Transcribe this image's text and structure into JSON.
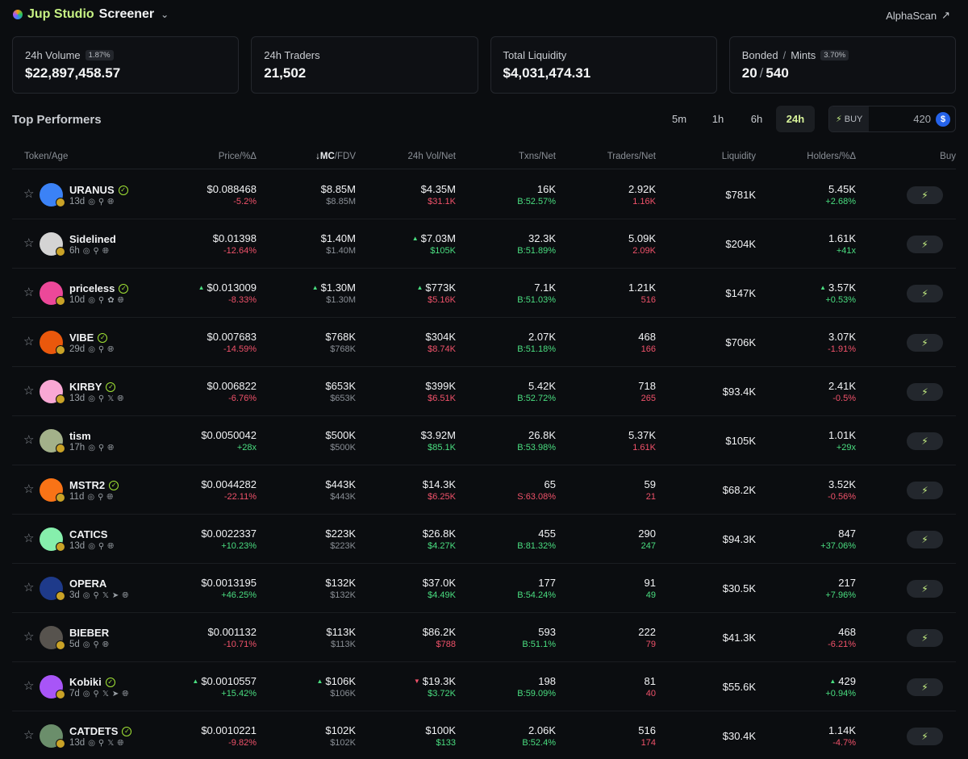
{
  "header": {
    "brand_accent": "Jup Studio",
    "brand_rest": "Screener",
    "alphascan": "AlphaScan"
  },
  "stats": [
    {
      "label": "24h Volume",
      "badge": "1.87%",
      "value": "$22,897,458.57"
    },
    {
      "label": "24h Traders",
      "badge": "",
      "value": "21,502"
    },
    {
      "label": "Total Liquidity",
      "badge": "",
      "value": "$4,031,474.31"
    },
    {
      "label_a": "Bonded",
      "label_b": "Mints",
      "badge": "3.70%",
      "value_a": "20",
      "value_b": "540"
    }
  ],
  "section_title": "Top Performers",
  "timeframes": [
    "5m",
    "1h",
    "6h",
    "24h"
  ],
  "active_timeframe": "24h",
  "quickbuy": {
    "label": "BUY",
    "amount": "420"
  },
  "columns": {
    "token": "Token/Age",
    "price": "Price/%Δ",
    "mc": "MC",
    "fdv": "/FDV",
    "vol": "24h Vol/Net",
    "txns": "Txns/Net",
    "traders": "Traders/Net",
    "liquidity": "Liquidity",
    "holders": "Holders/%Δ",
    "buy": "Buy"
  },
  "colors": {
    "accent": "#c7f284",
    "up": "#4ade80",
    "down": "#f0526a",
    "bg": "#0b0d10"
  },
  "rows": [
    {
      "name": "URANUS",
      "verified": true,
      "age": "13d",
      "socials": [
        "web",
        "search",
        "globe"
      ],
      "avatar": "#3b82f6",
      "price": "$0.088468",
      "price_chg": "-5.2%",
      "price_dir": "down",
      "price_tri": "",
      "mc": "$8.85M",
      "fdv": "$8.85M",
      "mc_tri": "",
      "vol": "$4.35M",
      "vol_net": "$31.1K",
      "vol_dir": "down",
      "vol_tri": "",
      "txns": "16K",
      "txns_net": "B:52.57%",
      "txns_dir": "up",
      "traders": "2.92K",
      "traders_net": "1.16K",
      "traders_dir": "down",
      "liquidity": "$781K",
      "holders": "5.45K",
      "holders_chg": "+2.68%",
      "holders_dir": "up",
      "holders_tri": ""
    },
    {
      "name": "Sidelined",
      "verified": false,
      "age": "6h",
      "socials": [
        "web",
        "search",
        "globe"
      ],
      "avatar": "#d4d4d4",
      "price": "$0.01398",
      "price_chg": "-12.64%",
      "price_dir": "down",
      "price_tri": "",
      "mc": "$1.40M",
      "fdv": "$1.40M",
      "mc_tri": "",
      "vol": "$7.03M",
      "vol_net": "$105K",
      "vol_dir": "up",
      "vol_tri": "up",
      "txns": "32.3K",
      "txns_net": "B:51.89%",
      "txns_dir": "up",
      "traders": "5.09K",
      "traders_net": "2.09K",
      "traders_dir": "down",
      "liquidity": "$204K",
      "holders": "1.61K",
      "holders_chg": "+41x",
      "holders_dir": "up",
      "holders_tri": ""
    },
    {
      "name": "priceless",
      "verified": true,
      "age": "10d",
      "socials": [
        "web",
        "search",
        "leaf",
        "globe"
      ],
      "avatar": "#ec4899",
      "price": "$0.013009",
      "price_chg": "-8.33%",
      "price_dir": "down",
      "price_tri": "up",
      "mc": "$1.30M",
      "fdv": "$1.30M",
      "mc_tri": "up",
      "vol": "$773K",
      "vol_net": "$5.16K",
      "vol_dir": "down",
      "vol_tri": "up",
      "txns": "7.1K",
      "txns_net": "B:51.03%",
      "txns_dir": "up",
      "traders": "1.21K",
      "traders_net": "516",
      "traders_dir": "down",
      "liquidity": "$147K",
      "holders": "3.57K",
      "holders_chg": "+0.53%",
      "holders_dir": "up",
      "holders_tri": "up"
    },
    {
      "name": "VIBE",
      "verified": true,
      "age": "29d",
      "socials": [
        "web",
        "search",
        "globe"
      ],
      "avatar": "#ea580c",
      "price": "$0.007683",
      "price_chg": "-14.59%",
      "price_dir": "down",
      "price_tri": "",
      "mc": "$768K",
      "fdv": "$768K",
      "mc_tri": "",
      "vol": "$304K",
      "vol_net": "$8.74K",
      "vol_dir": "down",
      "vol_tri": "",
      "txns": "2.07K",
      "txns_net": "B:51.18%",
      "txns_dir": "up",
      "traders": "468",
      "traders_net": "166",
      "traders_dir": "down",
      "liquidity": "$706K",
      "holders": "3.07K",
      "holders_chg": "-1.91%",
      "holders_dir": "down",
      "holders_tri": ""
    },
    {
      "name": "KIRBY",
      "verified": true,
      "age": "13d",
      "socials": [
        "web",
        "search",
        "x",
        "globe"
      ],
      "avatar": "#f9a8d4",
      "price": "$0.006822",
      "price_chg": "-6.76%",
      "price_dir": "down",
      "price_tri": "",
      "mc": "$653K",
      "fdv": "$653K",
      "mc_tri": "",
      "vol": "$399K",
      "vol_net": "$6.51K",
      "vol_dir": "down",
      "vol_tri": "",
      "txns": "5.42K",
      "txns_net": "B:52.72%",
      "txns_dir": "up",
      "traders": "718",
      "traders_net": "265",
      "traders_dir": "down",
      "liquidity": "$93.4K",
      "holders": "2.41K",
      "holders_chg": "-0.5%",
      "holders_dir": "down",
      "holders_tri": ""
    },
    {
      "name": "tism",
      "verified": false,
      "age": "17h",
      "socials": [
        "web",
        "search",
        "globe"
      ],
      "avatar": "#a3b18a",
      "price": "$0.0050042",
      "price_chg": "+28x",
      "price_dir": "up",
      "price_tri": "",
      "mc": "$500K",
      "fdv": "$500K",
      "mc_tri": "",
      "vol": "$3.92M",
      "vol_net": "$85.1K",
      "vol_dir": "up",
      "vol_tri": "",
      "txns": "26.8K",
      "txns_net": "B:53.98%",
      "txns_dir": "up",
      "traders": "5.37K",
      "traders_net": "1.61K",
      "traders_dir": "down",
      "liquidity": "$105K",
      "holders": "1.01K",
      "holders_chg": "+29x",
      "holders_dir": "up",
      "holders_tri": ""
    },
    {
      "name": "MSTR2",
      "verified": true,
      "age": "11d",
      "socials": [
        "web",
        "search",
        "globe"
      ],
      "avatar": "#f97316",
      "price": "$0.0044282",
      "price_chg": "-22.11%",
      "price_dir": "down",
      "price_tri": "",
      "mc": "$443K",
      "fdv": "$443K",
      "mc_tri": "",
      "vol": "$14.3K",
      "vol_net": "$6.25K",
      "vol_dir": "down",
      "vol_tri": "",
      "txns": "65",
      "txns_net": "S:63.08%",
      "txns_dir": "down",
      "traders": "59",
      "traders_net": "21",
      "traders_dir": "down",
      "liquidity": "$68.2K",
      "holders": "3.52K",
      "holders_chg": "-0.56%",
      "holders_dir": "down",
      "holders_tri": ""
    },
    {
      "name": "CATICS",
      "verified": false,
      "age": "13d",
      "socials": [
        "web",
        "search",
        "globe"
      ],
      "avatar": "#86efac",
      "price": "$0.0022337",
      "price_chg": "+10.23%",
      "price_dir": "up",
      "price_tri": "",
      "mc": "$223K",
      "fdv": "$223K",
      "mc_tri": "",
      "vol": "$26.8K",
      "vol_net": "$4.27K",
      "vol_dir": "up",
      "vol_tri": "",
      "txns": "455",
      "txns_net": "B:81.32%",
      "txns_dir": "up",
      "traders": "290",
      "traders_net": "247",
      "traders_dir": "up",
      "liquidity": "$94.3K",
      "holders": "847",
      "holders_chg": "+37.06%",
      "holders_dir": "up",
      "holders_tri": ""
    },
    {
      "name": "OPERA",
      "verified": false,
      "age": "3d",
      "socials": [
        "web",
        "search",
        "x",
        "telegram",
        "globe"
      ],
      "avatar": "#1e3a8a",
      "price": "$0.0013195",
      "price_chg": "+46.25%",
      "price_dir": "up",
      "price_tri": "",
      "mc": "$132K",
      "fdv": "$132K",
      "mc_tri": "",
      "vol": "$37.0K",
      "vol_net": "$4.49K",
      "vol_dir": "up",
      "vol_tri": "",
      "txns": "177",
      "txns_net": "B:54.24%",
      "txns_dir": "up",
      "traders": "91",
      "traders_net": "49",
      "traders_dir": "up",
      "liquidity": "$30.5K",
      "holders": "217",
      "holders_chg": "+7.96%",
      "holders_dir": "up",
      "holders_tri": ""
    },
    {
      "name": "BIEBER",
      "verified": false,
      "age": "5d",
      "socials": [
        "web",
        "search",
        "globe"
      ],
      "avatar": "#57534e",
      "price": "$0.001132",
      "price_chg": "-10.71%",
      "price_dir": "down",
      "price_tri": "",
      "mc": "$113K",
      "fdv": "$113K",
      "mc_tri": "",
      "vol": "$86.2K",
      "vol_net": "$788",
      "vol_dir": "down",
      "vol_tri": "",
      "txns": "593",
      "txns_net": "B:51.1%",
      "txns_dir": "up",
      "traders": "222",
      "traders_net": "79",
      "traders_dir": "down",
      "liquidity": "$41.3K",
      "holders": "468",
      "holders_chg": "-6.21%",
      "holders_dir": "down",
      "holders_tri": ""
    },
    {
      "name": "Kobiki",
      "verified": true,
      "age": "7d",
      "socials": [
        "web",
        "search",
        "x",
        "telegram",
        "globe"
      ],
      "avatar": "#a855f7",
      "price": "$0.0010557",
      "price_chg": "+15.42%",
      "price_dir": "up",
      "price_tri": "up",
      "mc": "$106K",
      "fdv": "$106K",
      "mc_tri": "up",
      "vol": "$19.3K",
      "vol_net": "$3.72K",
      "vol_dir": "up",
      "vol_tri": "down",
      "txns": "198",
      "txns_net": "B:59.09%",
      "txns_dir": "up",
      "traders": "81",
      "traders_net": "40",
      "traders_dir": "down",
      "liquidity": "$55.6K",
      "holders": "429",
      "holders_chg": "+0.94%",
      "holders_dir": "up",
      "holders_tri": "up"
    },
    {
      "name": "CATDETS",
      "verified": true,
      "age": "13d",
      "socials": [
        "web",
        "search",
        "x",
        "globe"
      ],
      "avatar": "#6b8e6b",
      "price": "$0.0010221",
      "price_chg": "-9.82%",
      "price_dir": "down",
      "price_tri": "",
      "mc": "$102K",
      "fdv": "$102K",
      "mc_tri": "",
      "vol": "$100K",
      "vol_net": "$133",
      "vol_dir": "up",
      "vol_tri": "",
      "txns": "2.06K",
      "txns_net": "B:52.4%",
      "txns_dir": "up",
      "traders": "516",
      "traders_net": "174",
      "traders_dir": "down",
      "liquidity": "$30.4K",
      "holders": "1.14K",
      "holders_chg": "-4.7%",
      "holders_dir": "down",
      "holders_tri": ""
    }
  ]
}
